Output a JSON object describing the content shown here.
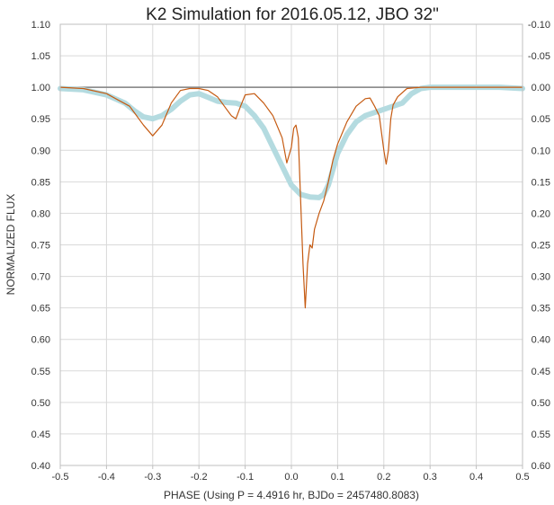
{
  "chart_data": {
    "type": "line",
    "title": "K2 Simulation for 2016.05.12, JBO 32\"",
    "xlabel": "PHASE (Using P = 4.4916 hr, BJDo = 2457480.8083)",
    "ylabel": "NORMALIZED FLUX",
    "xlim": [
      -0.5,
      0.5
    ],
    "ylim": [
      0.4,
      1.1
    ],
    "y2lim": [
      0.6,
      -0.1
    ],
    "grid": true,
    "legend": "none",
    "x_ticks": [
      "-0.5",
      "-0.4",
      "-0.3",
      "-0.2",
      "-0.1",
      "0.0",
      "0.1",
      "0.2",
      "0.3",
      "0.4",
      "0.5"
    ],
    "y_ticks": [
      "0.40",
      "0.45",
      "0.50",
      "0.55",
      "0.60",
      "0.65",
      "0.70",
      "0.75",
      "0.80",
      "0.85",
      "0.90",
      "0.95",
      "1.00",
      "1.05",
      "1.10"
    ],
    "y2_ticks": [
      "0.60",
      "0.55",
      "0.50",
      "0.45",
      "0.40",
      "0.35",
      "0.30",
      "0.25",
      "0.20",
      "0.15",
      "0.10",
      "0.05",
      "0.00",
      "-0.05",
      "-0.10"
    ],
    "reference_line": {
      "y": 1.0,
      "color": "#7f7f7f"
    },
    "series": [
      {
        "color": "#c55a11",
        "x": [
          -0.5,
          -0.45,
          -0.4,
          -0.35,
          -0.32,
          -0.3,
          -0.28,
          -0.26,
          -0.24,
          -0.22,
          -0.2,
          -0.18,
          -0.16,
          -0.14,
          -0.13,
          -0.12,
          -0.11,
          -0.1,
          -0.08,
          -0.06,
          -0.04,
          -0.02,
          -0.01,
          0.0,
          0.005,
          0.01,
          0.015,
          0.02,
          0.025,
          0.03,
          0.035,
          0.04,
          0.045,
          0.05,
          0.06,
          0.07,
          0.08,
          0.09,
          0.1,
          0.12,
          0.14,
          0.16,
          0.17,
          0.18,
          0.19,
          0.2,
          0.205,
          0.21,
          0.215,
          0.22,
          0.23,
          0.25,
          0.28,
          0.3,
          0.35,
          0.4,
          0.45,
          0.5
        ],
        "y": [
          1.0,
          0.998,
          0.99,
          0.97,
          0.94,
          0.923,
          0.94,
          0.975,
          0.995,
          0.998,
          0.998,
          0.995,
          0.985,
          0.965,
          0.955,
          0.95,
          0.97,
          0.988,
          0.99,
          0.975,
          0.955,
          0.92,
          0.88,
          0.905,
          0.935,
          0.94,
          0.92,
          0.82,
          0.72,
          0.65,
          0.72,
          0.75,
          0.745,
          0.775,
          0.8,
          0.82,
          0.85,
          0.885,
          0.91,
          0.945,
          0.97,
          0.982,
          0.983,
          0.97,
          0.955,
          0.9,
          0.878,
          0.9,
          0.95,
          0.972,
          0.985,
          0.998,
          1.0,
          1.0,
          1.0,
          1.0,
          1.0,
          1.0
        ]
      },
      {
        "color": "#b4dbe0",
        "x": [
          -0.5,
          -0.45,
          -0.4,
          -0.36,
          -0.34,
          -0.32,
          -0.3,
          -0.28,
          -0.26,
          -0.24,
          -0.22,
          -0.2,
          -0.18,
          -0.16,
          -0.14,
          -0.12,
          -0.1,
          -0.08,
          -0.06,
          -0.04,
          -0.02,
          0.0,
          0.02,
          0.04,
          0.06,
          0.07,
          0.08,
          0.09,
          0.1,
          0.12,
          0.14,
          0.16,
          0.18,
          0.2,
          0.22,
          0.24,
          0.26,
          0.28,
          0.3,
          0.35,
          0.4,
          0.45,
          0.5
        ],
        "y": [
          0.998,
          0.996,
          0.988,
          0.975,
          0.963,
          0.953,
          0.95,
          0.955,
          0.965,
          0.978,
          0.988,
          0.99,
          0.984,
          0.978,
          0.976,
          0.975,
          0.97,
          0.955,
          0.935,
          0.905,
          0.875,
          0.845,
          0.83,
          0.826,
          0.825,
          0.83,
          0.845,
          0.87,
          0.895,
          0.925,
          0.945,
          0.955,
          0.96,
          0.965,
          0.97,
          0.975,
          0.99,
          0.998,
          1.0,
          1.0,
          1.0,
          1.0,
          0.998
        ]
      }
    ]
  }
}
